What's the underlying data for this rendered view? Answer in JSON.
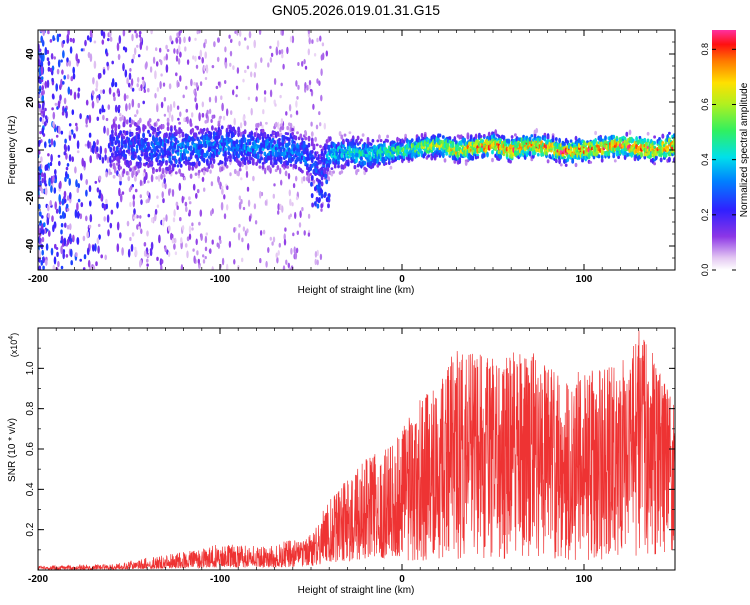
{
  "title": "GN05.2026.019.01.31.G15",
  "chart_data": [
    {
      "type": "heatmap",
      "name": "spectrogram",
      "xlabel": "Height of straight line (km)",
      "ylabel": "Frequency (Hz)",
      "xlim": [
        -200,
        150
      ],
      "ylim": [
        -50,
        50
      ],
      "xticks": [
        -200,
        -100,
        0,
        100
      ],
      "xtick_labels": [
        "-200",
        "-100",
        "0",
        "100"
      ],
      "yticks": [
        -40,
        -20,
        0,
        20,
        40
      ],
      "ytick_labels": [
        "-40",
        "-20",
        "0",
        "20",
        "40"
      ],
      "ridge": {
        "description": "dominant frequency track",
        "x": [
          -160,
          -140,
          -120,
          -100,
          -80,
          -60,
          -50,
          -45,
          -40,
          -30,
          -20,
          -10,
          0,
          10,
          20,
          30,
          40,
          50,
          60,
          70,
          80,
          90,
          100,
          110,
          120,
          130,
          140,
          150
        ],
        "freq": [
          2,
          1,
          0,
          2,
          1,
          0,
          -3,
          -8,
          -2,
          -1,
          -2,
          -1,
          0,
          1,
          2,
          0,
          1,
          2,
          0,
          2,
          1,
          -1,
          0,
          1,
          2,
          1,
          0,
          2
        ],
        "peak_amplitude": [
          0.25,
          0.3,
          0.35,
          0.35,
          0.35,
          0.35,
          0.3,
          0.25,
          0.4,
          0.45,
          0.45,
          0.5,
          0.55,
          0.6,
          0.65,
          0.7,
          0.75,
          0.8,
          0.8,
          0.78,
          0.8,
          0.82,
          0.82,
          0.8,
          0.82,
          0.85,
          0.8,
          0.78
        ],
        "spread": [
          14,
          13,
          12,
          11,
          10,
          10,
          11,
          12,
          8,
          7,
          7,
          6,
          5,
          5,
          5,
          5,
          5,
          5,
          5,
          5,
          5,
          5,
          5,
          5,
          5,
          5,
          5,
          6
        ]
      },
      "colorbar": {
        "label": "Normalized spectral amplitude",
        "range": [
          0,
          0.87
        ],
        "ticks": [
          0.0,
          0.2,
          0.4,
          0.6,
          0.8
        ],
        "tick_labels": [
          "0.0",
          "0.2",
          "0.4",
          "0.6",
          "0.8"
        ]
      }
    },
    {
      "type": "line",
      "name": "snr",
      "xlabel": "Height of straight line (km)",
      "ylabel": "SNR (10 * v/v)",
      "scale_label": "(x10",
      "scale_exp": "4",
      "scale_close": ")",
      "xlim": [
        -200,
        150
      ],
      "ylim": [
        0,
        1.2
      ],
      "xticks": [
        -200,
        -100,
        0,
        100
      ],
      "xtick_labels": [
        "-200",
        "-100",
        "0",
        "100"
      ],
      "yticks": [
        0.2,
        0.4,
        0.6,
        0.8,
        1.0
      ],
      "ytick_labels": [
        "0.2",
        "0.4",
        "0.6",
        "0.8",
        "1.0"
      ],
      "color": "#ee3333",
      "envelope": {
        "x": [
          -200,
          -160,
          -140,
          -120,
          -100,
          -80,
          -60,
          -50,
          -40,
          -35,
          -30,
          -20,
          -10,
          0,
          10,
          20,
          30,
          40,
          50,
          60,
          70,
          80,
          90,
          100,
          110,
          120,
          130,
          140,
          150
        ],
        "max": [
          0.02,
          0.03,
          0.06,
          0.09,
          0.13,
          0.12,
          0.15,
          0.18,
          0.35,
          0.4,
          0.45,
          0.55,
          0.6,
          0.7,
          0.85,
          0.95,
          1.1,
          1.08,
          1.05,
          1.08,
          1.1,
          1.02,
          0.95,
          1.0,
          1.0,
          1.02,
          1.2,
          1.05,
          0.8
        ]
      }
    }
  ]
}
